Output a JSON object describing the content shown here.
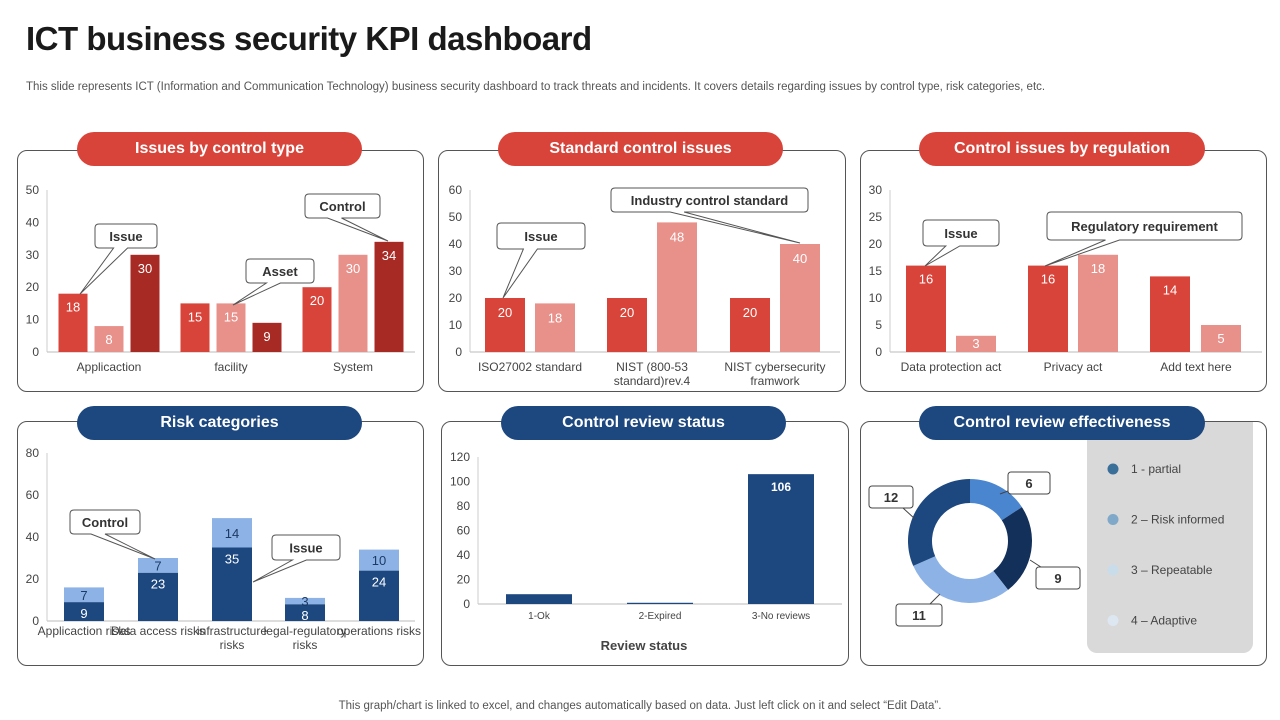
{
  "header": {
    "title": "ICT business security KPI dashboard",
    "subtitle": "This slide represents ICT (Information and Communication Technology) business security dashboard to track threats and incidents. It covers details regarding issues by control type,  risk categories, etc."
  },
  "footer": "This graph/chart is linked to excel,  and changes automatically based on data. Just left click on it and select “Edit Data”.",
  "colors": {
    "red": "#d9443a",
    "light_red": "#e8908a",
    "dark_red": "#a82a24",
    "navy": "#1c477f",
    "light_blue": "#8db3e6",
    "mid_blue": "#4a86d0",
    "dark_navy": "#13305a"
  },
  "chart_data": [
    {
      "type": "bar",
      "title": "Issues by control type",
      "categories": [
        "Applicaction",
        "facility",
        "System"
      ],
      "series": [
        {
          "values": [
            18,
            15,
            20
          ]
        },
        {
          "values": [
            8,
            15,
            30
          ]
        },
        {
          "values": [
            30,
            9,
            34
          ]
        }
      ],
      "ylim": [
        0,
        50
      ],
      "yticks": [
        0,
        10,
        20,
        30,
        40,
        50
      ],
      "annotations": [
        "Issue",
        "Asset",
        "Control"
      ]
    },
    {
      "type": "bar",
      "title": "Standard control issues",
      "categories": [
        [
          "ISO27002 standard"
        ],
        [
          "NIST (800-53",
          "standard)rev.4"
        ],
        [
          "NIST cybersecurity",
          "framwork"
        ]
      ],
      "series": [
        {
          "values": [
            20,
            20,
            20
          ]
        },
        {
          "values": [
            18,
            48,
            40
          ]
        }
      ],
      "ylim": [
        0,
        60
      ],
      "yticks": [
        0,
        10,
        20,
        30,
        40,
        50,
        60
      ],
      "annotations": [
        "Issue",
        "Industry  control standard"
      ]
    },
    {
      "type": "bar",
      "title": "Control issues by regulation",
      "categories": [
        "Data protection act",
        "Privacy act",
        "Add text here"
      ],
      "series": [
        {
          "values": [
            16,
            16,
            14
          ]
        },
        {
          "values": [
            3,
            18,
            5
          ]
        }
      ],
      "ylim": [
        0,
        30
      ],
      "yticks": [
        0,
        5,
        10,
        15,
        20,
        25,
        30
      ],
      "annotations": [
        "Issue",
        "Regulatory requirement"
      ]
    },
    {
      "type": "bar",
      "stacked": true,
      "title": "Risk categories",
      "categories": [
        [
          "Applicaction risks"
        ],
        [
          "Data access risks"
        ],
        [
          "infrastructure",
          "risks"
        ],
        [
          "legal-regulatory",
          "risks"
        ],
        [
          "operations risks"
        ]
      ],
      "series": [
        {
          "values": [
            9,
            23,
            35,
            8,
            24
          ]
        },
        {
          "values": [
            7,
            7,
            14,
            3,
            10
          ]
        }
      ],
      "ylim": [
        0,
        80
      ],
      "yticks": [
        0,
        20,
        40,
        60,
        80
      ],
      "annotations": [
        "Control",
        "Issue"
      ]
    },
    {
      "type": "bar",
      "title": "Control review status",
      "categories": [
        "1-Ok",
        "2-Expired",
        "3-No reviews"
      ],
      "values": [
        8,
        1,
        106
      ],
      "data_labels": [
        "",
        "",
        "106"
      ],
      "xlabel": "Review status",
      "ylim": [
        0,
        120
      ],
      "yticks": [
        0,
        20,
        40,
        60,
        80,
        100,
        120
      ]
    },
    {
      "type": "pie",
      "donut": true,
      "title": "Control review effectiveness",
      "slices": [
        {
          "value": 6,
          "label": "6"
        },
        {
          "value": 9,
          "label": "9"
        },
        {
          "value": 11,
          "label": "11"
        },
        {
          "value": 12,
          "label": "12"
        }
      ],
      "legend": [
        "1 - partial",
        "2 – Risk informed",
        "3 – Repeatable",
        "4 – Adaptive"
      ],
      "legend_colors": [
        "#3a6f9a",
        "#7fa8c9",
        "#c9dcea",
        "#dde7f1"
      ],
      "legend_position": "right"
    }
  ]
}
